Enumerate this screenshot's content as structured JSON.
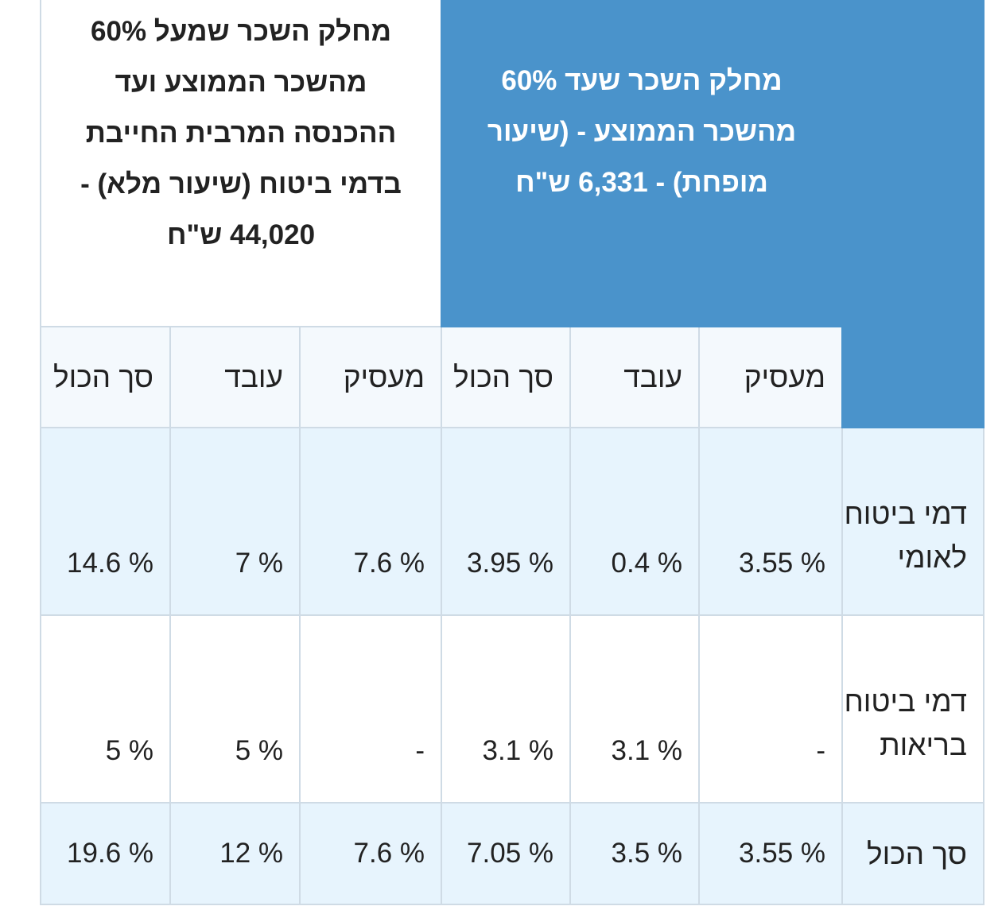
{
  "table": {
    "header": {
      "reduced_rate": "מחלק השכר שעד 60% מהשכר הממוצע - (שיעור מופחת) - 6,331 ש\"ח",
      "full_rate": "מחלק השכר שמעל 60% מהשכר הממוצע ועד ההכנסה המרבית החייבת בדמי ביטוח (שיעור מלא) - 44,020 ש\"ח"
    },
    "subheaders": {
      "reduced": [
        "מעסיק",
        "עובד",
        "סך הכול"
      ],
      "full": [
        "מעסיק",
        "עובד",
        "סך הכול"
      ]
    },
    "rows": [
      {
        "label": "דמי ביטוח לאומי",
        "reduced": [
          "3.55 %",
          "0.4 %",
          "3.95 %"
        ],
        "full": [
          "7.6 %",
          "7 %",
          "14.6 %"
        ]
      },
      {
        "label": "דמי ביטוח בריאות",
        "reduced": [
          "-",
          "3.1 %",
          "3.1 %"
        ],
        "full": [
          "-",
          "5 %",
          "5 %"
        ]
      },
      {
        "label": "סך הכול",
        "reduced": [
          "3.55 %",
          "3.5 %",
          "7.05 %"
        ],
        "full": [
          "7.6 %",
          "12 %",
          "19.6 %"
        ]
      }
    ]
  },
  "colors": {
    "header_blue": "#4a93cb",
    "row_alt": "#e7f4fd",
    "subheader_bg": "#f4f9fd",
    "border": "#cfdbe5"
  }
}
